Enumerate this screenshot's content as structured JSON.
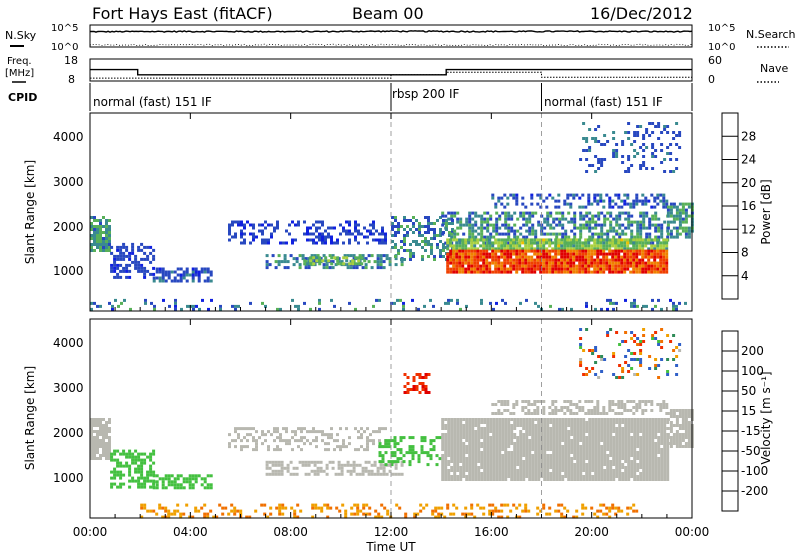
{
  "header": {
    "radar": "Fort Hays East (fitACF)",
    "beam": "Beam 00",
    "date": "16/Dec/2012"
  },
  "sky_panel": {
    "left_label": "N.Sky",
    "right_label": "N.Search",
    "left_ticks": [
      "10^5",
      "10^0"
    ],
    "right_ticks": [
      "10^5",
      "10^0"
    ]
  },
  "freq_panel": {
    "left_label_1": "Freq.",
    "left_label_2": "[MHz]",
    "right_label": "Nave",
    "left_ticks": [
      "18",
      "8"
    ],
    "right_ticks": [
      "60",
      "0"
    ]
  },
  "cpid_panel": {
    "label": "CPID",
    "segments": [
      "normal (fast) 151 IF",
      "rbsp 200 IF",
      "normal (fast) 151 IF"
    ]
  },
  "power_panel": {
    "ylabel": "Slant Range [km]",
    "yticks": [
      "1000",
      "2000",
      "3000",
      "4000"
    ],
    "colorbar_label": "Power [dB]",
    "colorbar_ticks": [
      "4",
      "8",
      "12",
      "16",
      "20",
      "24",
      "28"
    ]
  },
  "velocity_panel": {
    "ylabel": "Slant Range [km]",
    "yticks": [
      "1000",
      "2000",
      "3000",
      "4000"
    ],
    "colorbar_label": "Velocity [m s⁻¹]",
    "colorbar_ticks": [
      "200",
      "100",
      "50",
      "15",
      "-15",
      "-50",
      "-100",
      "-200"
    ]
  },
  "xaxis": {
    "label": "Time UT",
    "ticks": [
      "00:00",
      "04:00",
      "08:00",
      "12:00",
      "16:00",
      "20:00",
      "00:00"
    ]
  },
  "colors": {
    "power_scale": [
      "#1020e0",
      "#2848c0",
      "#3a8a90",
      "#58b058",
      "#a8d040",
      "#f0c000",
      "#f08000",
      "#f04000",
      "#e00000"
    ],
    "velocity_scale": [
      "#1020c0",
      "#3060c8",
      "#2e8b57",
      "#44c040",
      "#b8b8b0",
      "#f0a000",
      "#f07000",
      "#f03000",
      "#e00000"
    ]
  },
  "chart_data": [
    {
      "type": "line",
      "name": "sky_search_noise",
      "x_hours": [
        0,
        4,
        8,
        12,
        16,
        20,
        24
      ],
      "n_sky": [
        3000,
        3500,
        3200,
        3800,
        3400,
        3600,
        3100
      ],
      "n_search": [
        2,
        2,
        2,
        2,
        2,
        2,
        2
      ],
      "ylim": [
        1,
        100000
      ],
      "scale": "log"
    },
    {
      "type": "line",
      "name": "frequency_nave",
      "freq_steps": [
        {
          "from": 0,
          "to": 1.9,
          "mhz": 13.2
        },
        {
          "from": 1.9,
          "to": 14.2,
          "mhz": 10.8
        },
        {
          "from": 14.2,
          "to": 24,
          "mhz": 13.2
        }
      ],
      "nave_steps": [
        {
          "from": 0,
          "to": 12,
          "nave": 8
        },
        {
          "from": 12,
          "to": 14.2,
          "nave": 17
        },
        {
          "from": 14.2,
          "to": 18,
          "nave": 24
        },
        {
          "from": 18,
          "to": 24,
          "nave": 10
        }
      ],
      "ylim_freq": [
        8,
        18
      ],
      "ylim_nave": [
        0,
        60
      ]
    },
    {
      "type": "table",
      "name": "cpid_segments",
      "segments": [
        {
          "from": 0,
          "to": 12
        },
        {
          "from": 12,
          "to": 18
        },
        {
          "from": 18,
          "to": 24
        }
      ]
    },
    {
      "type": "heatmap",
      "name": "power",
      "xlim": [
        0,
        24
      ],
      "ylim": [
        180,
        4600
      ],
      "zlim": [
        0,
        32
      ],
      "blobs": [
        {
          "t0": 0.0,
          "t1": 0.8,
          "r0": 1500,
          "r1": 2300,
          "v0": 6,
          "v1": 14,
          "d": 0.8
        },
        {
          "t0": 0.8,
          "t1": 2.5,
          "r0": 900,
          "r1": 1700,
          "v0": 3,
          "v1": 7,
          "d": 0.5
        },
        {
          "t0": 2.5,
          "t1": 4.8,
          "r0": 850,
          "r1": 1150,
          "v0": 3,
          "v1": 8,
          "d": 0.6
        },
        {
          "t0": 5.5,
          "t1": 11.8,
          "r0": 1700,
          "r1": 2200,
          "v0": 2,
          "v1": 6,
          "d": 0.35
        },
        {
          "t0": 7.0,
          "t1": 12.5,
          "r0": 1150,
          "r1": 1450,
          "v0": 4,
          "v1": 12,
          "d": 0.55
        },
        {
          "t0": 8.5,
          "t1": 11.0,
          "r0": 1250,
          "r1": 1400,
          "v0": 10,
          "v1": 16,
          "d": 0.6
        },
        {
          "t0": 12.0,
          "t1": 14.5,
          "r0": 1300,
          "r1": 2300,
          "v0": 4,
          "v1": 12,
          "d": 0.45
        },
        {
          "t0": 14.0,
          "t1": 23.0,
          "r0": 1700,
          "r1": 2400,
          "v0": 4,
          "v1": 14,
          "d": 0.55
        },
        {
          "t0": 14.2,
          "t1": 23.0,
          "r0": 1550,
          "r1": 1800,
          "v0": 10,
          "v1": 18,
          "d": 0.9
        },
        {
          "t0": 14.2,
          "t1": 23.0,
          "r0": 1050,
          "r1": 1550,
          "v0": 22,
          "v1": 32,
          "d": 0.95
        },
        {
          "t0": 16.0,
          "t1": 23.0,
          "r0": 2500,
          "r1": 2800,
          "v0": 3,
          "v1": 8,
          "d": 0.4
        },
        {
          "t0": 19.5,
          "t1": 23.5,
          "r0": 3300,
          "r1": 4400,
          "v0": 4,
          "v1": 8,
          "d": 0.2
        },
        {
          "t0": 23.0,
          "t1": 24.0,
          "r0": 1800,
          "r1": 2600,
          "v0": 6,
          "v1": 14,
          "d": 0.7
        },
        {
          "t0": 0.0,
          "t1": 24.0,
          "r0": 200,
          "r1": 450,
          "v0": 2,
          "v1": 12,
          "d": 0.18
        }
      ]
    },
    {
      "type": "heatmap",
      "name": "velocity",
      "xlim": [
        0,
        24
      ],
      "ylim": [
        180,
        4600
      ],
      "zlim": [
        -250,
        250
      ],
      "blobs": [
        {
          "t0": 0.0,
          "t1": 0.8,
          "r0": 1500,
          "r1": 2400,
          "v0": -10,
          "v1": 10,
          "d": 0.8
        },
        {
          "t0": 0.8,
          "t1": 2.5,
          "r0": 900,
          "r1": 1700,
          "v0": 20,
          "v1": 50,
          "d": 0.55
        },
        {
          "t0": 2.5,
          "t1": 4.8,
          "r0": 850,
          "r1": 1150,
          "v0": 20,
          "v1": 50,
          "d": 0.6
        },
        {
          "t0": 5.5,
          "t1": 11.8,
          "r0": 1700,
          "r1": 2200,
          "v0": -10,
          "v1": 10,
          "d": 0.35
        },
        {
          "t0": 7.0,
          "t1": 12.5,
          "r0": 1150,
          "r1": 1450,
          "v0": -10,
          "v1": 10,
          "d": 0.6
        },
        {
          "t0": 11.5,
          "t1": 14.0,
          "r0": 1400,
          "r1": 2000,
          "v0": 20,
          "v1": 50,
          "d": 0.4
        },
        {
          "t0": 14.0,
          "t1": 23.0,
          "r0": 1050,
          "r1": 2400,
          "v0": -12,
          "v1": 12,
          "d": 0.95
        },
        {
          "t0": 16.0,
          "t1": 23.0,
          "r0": 2500,
          "r1": 2800,
          "v0": -12,
          "v1": 12,
          "d": 0.5
        },
        {
          "t0": 19.5,
          "t1": 23.5,
          "r0": 3300,
          "r1": 4400,
          "v0": -200,
          "v1": 200,
          "d": 0.15
        },
        {
          "t0": 12.5,
          "t1": 13.5,
          "r0": 3000,
          "r1": 3400,
          "v0": -220,
          "v1": -150,
          "d": 0.4
        },
        {
          "t0": 23.0,
          "t1": 24.0,
          "r0": 1800,
          "r1": 2600,
          "v0": -10,
          "v1": 10,
          "d": 0.7
        },
        {
          "t0": 2.0,
          "t1": 22.0,
          "r0": 200,
          "r1": 500,
          "v0": -70,
          "v1": -20,
          "d": 0.3
        }
      ]
    }
  ]
}
